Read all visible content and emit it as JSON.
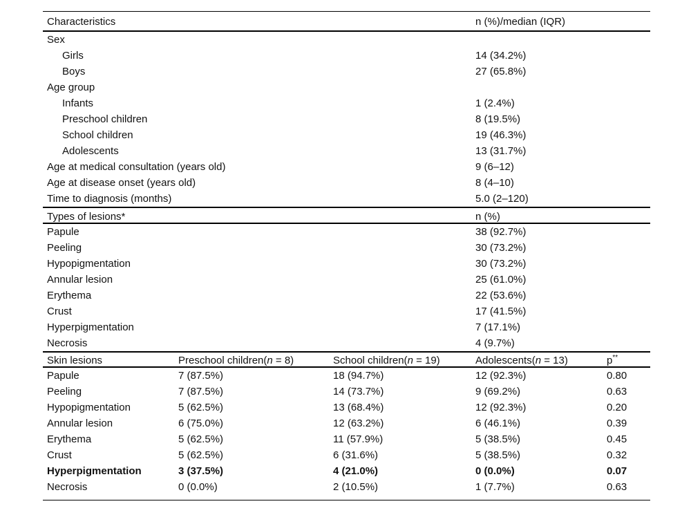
{
  "table": {
    "section1": {
      "header": {
        "col1": "Characteristics",
        "col2": "n (%)/median (IQR)"
      },
      "rows": [
        {
          "label": "Sex",
          "value": "",
          "indent": 0
        },
        {
          "label": "Girls",
          "value": "14 (34.2%)",
          "indent": 1
        },
        {
          "label": "Boys",
          "value": "27 (65.8%)",
          "indent": 1
        },
        {
          "label": "Age group",
          "value": "",
          "indent": 0
        },
        {
          "label": "Infants",
          "value": "1 (2.4%)",
          "indent": 1
        },
        {
          "label": "Preschool children",
          "value": "8 (19.5%)",
          "indent": 1
        },
        {
          "label": "School children",
          "value": "19 (46.3%)",
          "indent": 1
        },
        {
          "label": "Adolescents",
          "value": "13 (31.7%)",
          "indent": 1
        },
        {
          "label": "Age at medical consultation (years old)",
          "value": "9 (6–12)",
          "indent": 0
        },
        {
          "label": "Age at disease onset (years old)",
          "value": "8 (4–10)",
          "indent": 0
        },
        {
          "label": "Time to diagnosis (months)",
          "value": "5.0 (2–120)",
          "indent": 0
        }
      ]
    },
    "section2": {
      "header": {
        "col1": "Types of lesions*",
        "col2": "n (%)"
      },
      "rows": [
        {
          "label": "Papule",
          "value": "38 (92.7%)"
        },
        {
          "label": "Peeling",
          "value": "30 (73.2%)"
        },
        {
          "label": "Hypopigmentation",
          "value": "30 (73.2%)"
        },
        {
          "label": "Annular lesion",
          "value": "25 (61.0%)"
        },
        {
          "label": "Erythema",
          "value": "22 (53.6%)"
        },
        {
          "label": "Crust",
          "value": "17 (41.5%)"
        },
        {
          "label": "Hyperpigmentation",
          "value": "7 (17.1%)"
        },
        {
          "label": "Necrosis",
          "value": "4 (9.7%)"
        }
      ]
    },
    "section3": {
      "header": {
        "col1": "Skin lesions",
        "col2": {
          "pre": "Preschool children(",
          "n": "n",
          "post": " = 8)"
        },
        "col3": {
          "pre": "School children(",
          "n": "n",
          "post": " = 19)"
        },
        "col4": {
          "pre": "Adolescents(",
          "n": "n",
          "post": " = 13)"
        },
        "col5": {
          "base": "p",
          "sup": "**"
        }
      },
      "rows": [
        {
          "label": "Papule",
          "preschool": "7 (87.5%)",
          "school": "18 (94.7%)",
          "adolescents": "12 (92.3%)",
          "p": "0.80",
          "bold": false
        },
        {
          "label": "Peeling",
          "preschool": "7 (87.5%)",
          "school": "14 (73.7%)",
          "adolescents": "9 (69.2%)",
          "p": "0.63",
          "bold": false
        },
        {
          "label": "Hypopigmentation",
          "preschool": "5 (62.5%)",
          "school": "13 (68.4%)",
          "adolescents": "12 (92.3%)",
          "p": "0.20",
          "bold": false
        },
        {
          "label": "Annular lesion",
          "preschool": "6 (75.0%)",
          "school": "12 (63.2%)",
          "adolescents": "6 (46.1%)",
          "p": "0.39",
          "bold": false
        },
        {
          "label": "Erythema",
          "preschool": "5 (62.5%)",
          "school": "11 (57.9%)",
          "adolescents": "5 (38.5%)",
          "p": "0.45",
          "bold": false
        },
        {
          "label": "Crust",
          "preschool": "5 (62.5%)",
          "school": "6 (31.6%)",
          "adolescents": "5 (38.5%)",
          "p": "0.32",
          "bold": false
        },
        {
          "label": "Hyperpigmentation",
          "preschool": "3 (37.5%)",
          "school": "4 (21.0%)",
          "adolescents": "0 (0.0%)",
          "p": "0.07",
          "bold": true
        },
        {
          "label": "Necrosis",
          "preschool": "0 (0.0%)",
          "school": "2 (10.5%)",
          "adolescents": "1 (7.7%)",
          "p": "0.63",
          "bold": false
        }
      ]
    }
  }
}
